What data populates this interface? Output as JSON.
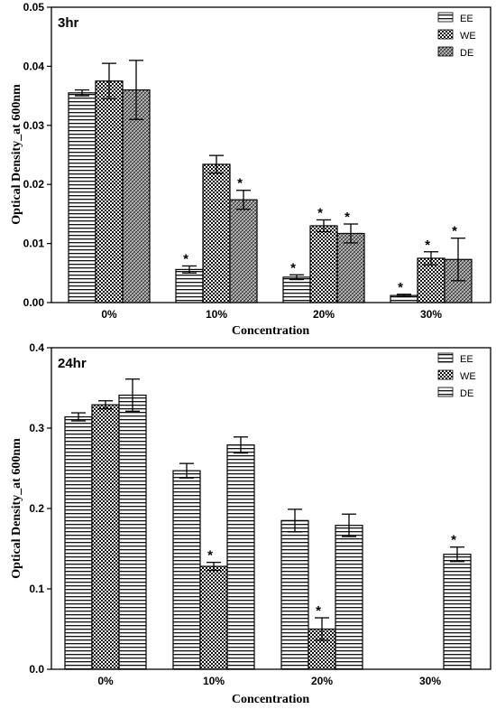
{
  "chart_data": [
    {
      "type": "bar",
      "title": "3hr",
      "xlabel": "Concentration",
      "ylabel": "Optical Density_at 600nm",
      "categories": [
        "0%",
        "10%",
        "20%",
        "30%"
      ],
      "ylim": [
        0,
        0.05
      ],
      "yticks": [
        "0.00",
        "0.01",
        "0.02",
        "0.03",
        "0.04",
        "0.05"
      ],
      "legend_position": "top-right",
      "series": [
        {
          "name": "EE",
          "pattern": "horizontal-lines",
          "values": [
            0.0355,
            0.0056,
            0.0043,
            0.0012
          ],
          "errors": [
            0.0005,
            0.0006,
            0.0004,
            0.0002
          ],
          "significant": [
            false,
            true,
            true,
            true
          ]
        },
        {
          "name": "WE",
          "pattern": "checker",
          "values": [
            0.0375,
            0.0234,
            0.013,
            0.0075
          ],
          "errors": [
            0.003,
            0.0015,
            0.001,
            0.0011
          ],
          "significant": [
            false,
            false,
            true,
            true
          ]
        },
        {
          "name": "DE",
          "pattern": "diagonal-hatch",
          "values": [
            0.036,
            0.0174,
            0.0117,
            0.0073
          ],
          "errors": [
            0.005,
            0.0016,
            0.0016,
            0.0036
          ],
          "significant": [
            false,
            true,
            true,
            true
          ]
        }
      ],
      "significance_marker": "*"
    },
    {
      "type": "bar",
      "title": "24hr",
      "xlabel": "Concentration",
      "ylabel": "Optical Density_at 600nm",
      "categories": [
        "0%",
        "10%",
        "20%",
        "30%"
      ],
      "ylim": [
        0,
        0.4
      ],
      "yticks": [
        "0.0",
        "0.1",
        "0.2",
        "0.3",
        "0.4"
      ],
      "legend_position": "top-right",
      "series": [
        {
          "name": "EE",
          "pattern": "horizontal-lines",
          "values": [
            0.314,
            0.247,
            0.185,
            null
          ],
          "errors": [
            0.005,
            0.009,
            0.014,
            null
          ],
          "significant": [
            false,
            false,
            false,
            false
          ]
        },
        {
          "name": "WE",
          "pattern": "checker",
          "values": [
            0.329,
            0.128,
            0.05,
            null
          ],
          "errors": [
            0.005,
            0.005,
            0.014,
            null
          ],
          "significant": [
            false,
            true,
            true,
            false
          ]
        },
        {
          "name": "DE",
          "pattern": "horizontal-lines",
          "values": [
            0.341,
            0.279,
            0.179,
            0.143
          ],
          "errors": [
            0.02,
            0.01,
            0.014,
            0.009
          ],
          "significant": [
            false,
            false,
            false,
            true
          ]
        }
      ],
      "significance_marker": "*"
    }
  ]
}
